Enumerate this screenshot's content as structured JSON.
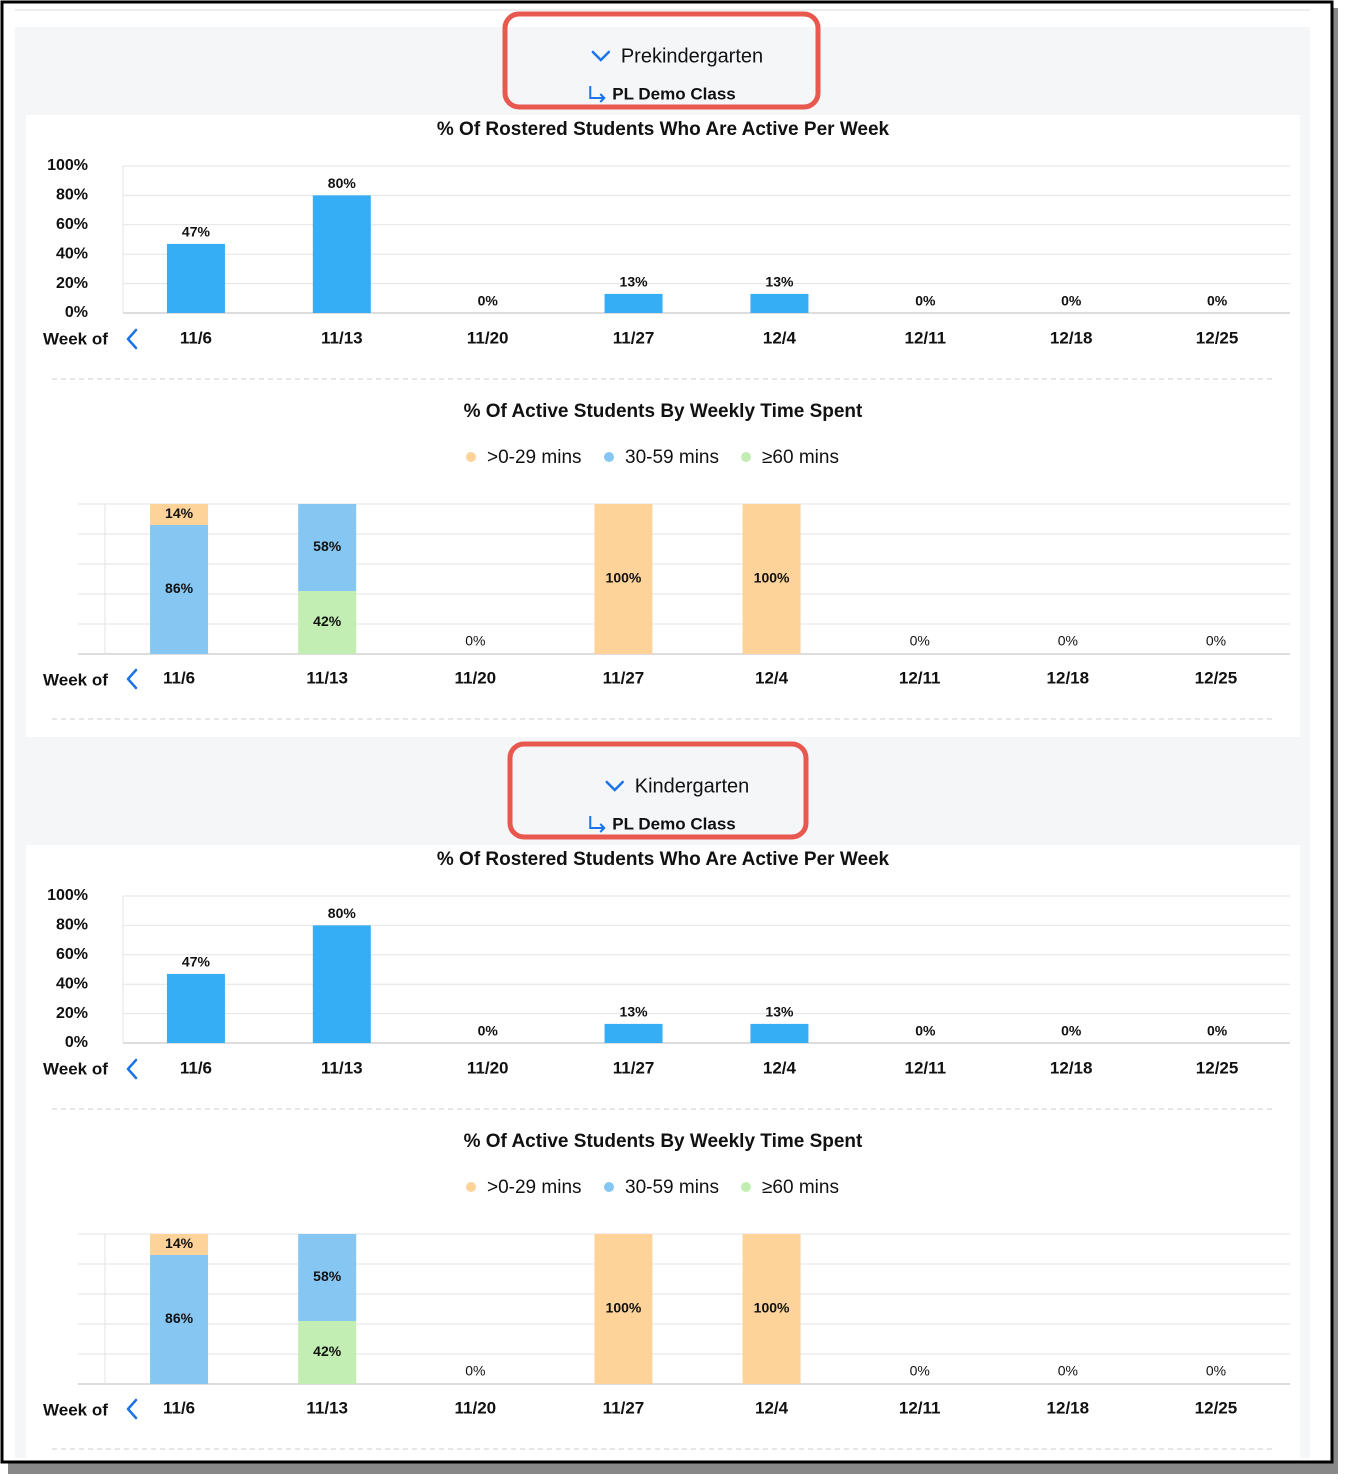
{
  "sections": [
    {
      "title": "Prekindergarten",
      "subtitle": "PL Demo Class"
    },
    {
      "title": "Kindergarten",
      "subtitle": "PL Demo Class"
    }
  ],
  "chart_data": [
    {
      "type": "bar",
      "title": "% Of Rostered Students Who Are Active Per Week",
      "x_label": "Week of",
      "categories": [
        "11/6",
        "11/13",
        "11/20",
        "11/27",
        "12/4",
        "12/11",
        "12/18",
        "12/25"
      ],
      "values": [
        47,
        80,
        0,
        13,
        13,
        0,
        0,
        0
      ],
      "value_labels": [
        "47%",
        "80%",
        "0%",
        "13%",
        "13%",
        "0%",
        "0%",
        "0%"
      ],
      "color": "#35aef5",
      "ylim": [
        0,
        100
      ],
      "yticks": [
        {
          "value": 0,
          "label": "0%"
        },
        {
          "value": 20,
          "label": "20%"
        },
        {
          "value": 40,
          "label": "40%"
        },
        {
          "value": 60,
          "label": "60%"
        },
        {
          "value": 80,
          "label": "80%"
        },
        {
          "value": 100,
          "label": "100%"
        }
      ],
      "grid": true
    },
    {
      "type": "stacked_bar",
      "title": "% Of Active Students By Weekly Time Spent",
      "x_label": "Week of",
      "categories": [
        "11/6",
        "11/13",
        "11/20",
        "11/27",
        "12/4",
        "12/11",
        "12/18",
        "12/25"
      ],
      "series": [
        {
          "name": ">0-29 mins",
          "color": "#fdd39a",
          "values": [
            14,
            0,
            0,
            100,
            100,
            0,
            0,
            0
          ],
          "value_labels": [
            "14%",
            null,
            "0%",
            "100%",
            "100%",
            "0%",
            "0%",
            "0%"
          ]
        },
        {
          "name": "30-59 mins",
          "color": "#86c6f2",
          "values": [
            86,
            58,
            0,
            0,
            0,
            0,
            0,
            0
          ],
          "value_labels": [
            "86%",
            "58%",
            null,
            null,
            null,
            null,
            null,
            null
          ]
        },
        {
          "name": "≥60 mins",
          "color": "#c2edb3",
          "values": [
            0,
            42,
            0,
            0,
            0,
            0,
            0,
            0
          ],
          "value_labels": [
            null,
            "42%",
            null,
            null,
            null,
            null,
            null,
            null
          ]
        }
      ],
      "ylim": [
        0,
        100
      ],
      "yticks": [
        0,
        20,
        40,
        60,
        80,
        100
      ],
      "grid": true
    },
    {
      "type": "bar",
      "title": "% Of Rostered Students Who Are Active Per Week",
      "x_label": "Week of",
      "categories": [
        "11/6",
        "11/13",
        "11/20",
        "11/27",
        "12/4",
        "12/11",
        "12/18",
        "12/25"
      ],
      "values": [
        47,
        80,
        0,
        13,
        13,
        0,
        0,
        0
      ],
      "value_labels": [
        "47%",
        "80%",
        "0%",
        "13%",
        "13%",
        "0%",
        "0%",
        "0%"
      ],
      "color": "#35aef5",
      "ylim": [
        0,
        100
      ],
      "yticks": [
        {
          "value": 0,
          "label": "0%"
        },
        {
          "value": 20,
          "label": "20%"
        },
        {
          "value": 40,
          "label": "40%"
        },
        {
          "value": 60,
          "label": "60%"
        },
        {
          "value": 80,
          "label": "80%"
        },
        {
          "value": 100,
          "label": "100%"
        }
      ],
      "grid": true
    },
    {
      "type": "stacked_bar",
      "title": "% Of Active Students By Weekly Time Spent",
      "x_label": "Week of",
      "categories": [
        "11/6",
        "11/13",
        "11/20",
        "11/27",
        "12/4",
        "12/11",
        "12/18",
        "12/25"
      ],
      "series": [
        {
          "name": ">0-29 mins",
          "color": "#fdd39a",
          "values": [
            14,
            0,
            0,
            100,
            100,
            0,
            0,
            0
          ],
          "value_labels": [
            "14%",
            null,
            "0%",
            "100%",
            "100%",
            "0%",
            "0%",
            "0%"
          ]
        },
        {
          "name": "30-59 mins",
          "color": "#86c6f2",
          "values": [
            86,
            58,
            0,
            0,
            0,
            0,
            0,
            0
          ],
          "value_labels": [
            "86%",
            "58%",
            null,
            null,
            null,
            null,
            null,
            null
          ]
        },
        {
          "name": "≥60 mins",
          "color": "#c2edb3",
          "values": [
            0,
            42,
            0,
            0,
            0,
            0,
            0,
            0
          ],
          "value_labels": [
            null,
            "42%",
            null,
            null,
            null,
            null,
            null,
            null
          ]
        }
      ],
      "ylim": [
        0,
        100
      ],
      "yticks": [
        0,
        20,
        40,
        60,
        80,
        100
      ],
      "grid": true
    }
  ]
}
